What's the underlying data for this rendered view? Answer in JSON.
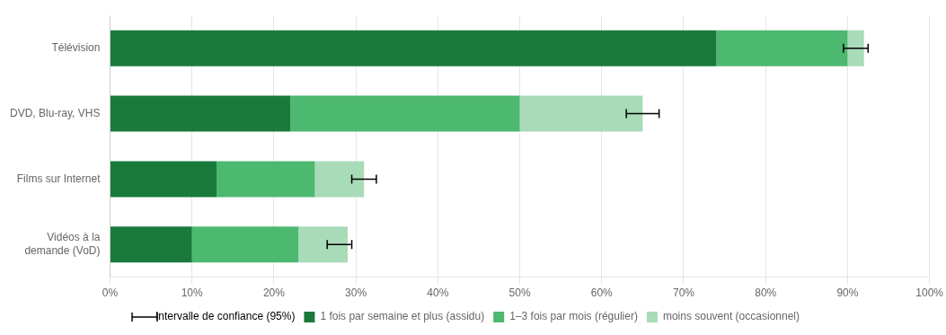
{
  "chart_data": {
    "type": "bar",
    "orientation": "horizontal",
    "stacked": true,
    "categories": [
      "Télévision",
      "DVD, Blu-ray, VHS",
      "Films sur Internet",
      "Vidéos à la\ndemande (VoD)"
    ],
    "series": [
      {
        "name": "1 fois par semaine et plus (assidu)",
        "color": "#1a7a3c",
        "values": [
          74,
          22,
          13,
          10
        ]
      },
      {
        "name": "1–3 fois par mois (régulier)",
        "color": "#4db870",
        "values": [
          16,
          28,
          12,
          13
        ]
      },
      {
        "name": "moins souvent (occasionnel)",
        "color": "#a8dbb8",
        "values": [
          2,
          15,
          6,
          6
        ]
      }
    ],
    "error_label": "Intervalle de confiance (95%)",
    "error_x": [
      91,
      65,
      31,
      28
    ],
    "error_xerr": [
      1.5,
      2.0,
      1.5,
      1.5
    ],
    "xlim": [
      0,
      100
    ],
    "xticks": [
      {
        "value": 0,
        "label": "0%"
      },
      {
        "value": 10,
        "label": "10%"
      },
      {
        "value": 20,
        "label": "20%"
      },
      {
        "value": 30,
        "label": "30%"
      },
      {
        "value": 40,
        "label": "40%"
      },
      {
        "value": 50,
        "label": "50%"
      },
      {
        "value": 60,
        "label": "60%"
      },
      {
        "value": 70,
        "label": "70%"
      },
      {
        "value": 80,
        "label": "80%"
      },
      {
        "value": 90,
        "label": "90%"
      },
      {
        "value": 100,
        "label": "100%"
      }
    ],
    "grid": true,
    "legend": "bottom"
  }
}
